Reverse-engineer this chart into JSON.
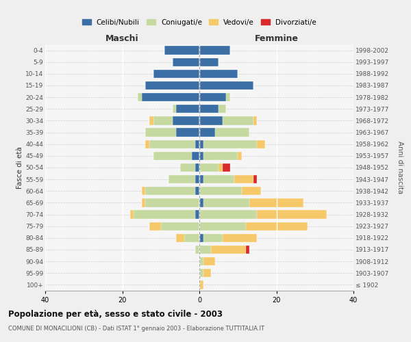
{
  "age_groups": [
    "100+",
    "95-99",
    "90-94",
    "85-89",
    "80-84",
    "75-79",
    "70-74",
    "65-69",
    "60-64",
    "55-59",
    "50-54",
    "45-49",
    "40-44",
    "35-39",
    "30-34",
    "25-29",
    "20-24",
    "15-19",
    "10-14",
    "5-9",
    "0-4"
  ],
  "birth_years": [
    "≤ 1902",
    "1903-1907",
    "1908-1912",
    "1913-1917",
    "1918-1922",
    "1923-1927",
    "1928-1932",
    "1933-1937",
    "1938-1942",
    "1943-1947",
    "1948-1952",
    "1953-1957",
    "1958-1962",
    "1963-1967",
    "1968-1972",
    "1973-1977",
    "1978-1982",
    "1983-1987",
    "1988-1992",
    "1993-1997",
    "1998-2002"
  ],
  "colors": {
    "celibi": "#3a6ea5",
    "coniugati": "#c5d9a0",
    "vedovi": "#f5c96a",
    "divorziati": "#d9292b"
  },
  "males": {
    "celibi": [
      0,
      0,
      0,
      0,
      0,
      0,
      1,
      0,
      1,
      1,
      1,
      2,
      1,
      6,
      7,
      6,
      15,
      14,
      12,
      7,
      9
    ],
    "coniugati": [
      0,
      0,
      0,
      1,
      4,
      10,
      16,
      14,
      13,
      7,
      4,
      10,
      12,
      8,
      5,
      1,
      1,
      0,
      0,
      0,
      0
    ],
    "vedovi": [
      0,
      0,
      0,
      0,
      2,
      3,
      1,
      1,
      1,
      0,
      0,
      0,
      1,
      0,
      1,
      0,
      0,
      0,
      0,
      0,
      0
    ],
    "divorziati": [
      0,
      0,
      0,
      0,
      0,
      0,
      0,
      0,
      0,
      0,
      0,
      0,
      0,
      0,
      0,
      0,
      0,
      0,
      0,
      0,
      0
    ]
  },
  "females": {
    "celibi": [
      0,
      0,
      0,
      0,
      1,
      0,
      0,
      1,
      0,
      1,
      0,
      1,
      1,
      4,
      6,
      5,
      7,
      14,
      10,
      5,
      8
    ],
    "coniugati": [
      0,
      1,
      1,
      3,
      5,
      12,
      15,
      12,
      11,
      8,
      5,
      9,
      14,
      9,
      8,
      2,
      1,
      0,
      0,
      0,
      0
    ],
    "vedovi": [
      1,
      2,
      3,
      9,
      9,
      16,
      18,
      14,
      5,
      5,
      1,
      1,
      2,
      0,
      1,
      0,
      0,
      0,
      0,
      0,
      0
    ],
    "divorziati": [
      0,
      0,
      0,
      1,
      0,
      0,
      0,
      0,
      0,
      1,
      2,
      0,
      0,
      0,
      0,
      0,
      0,
      0,
      0,
      0,
      0
    ]
  },
  "xlim": 40,
  "title": "Popolazione per età, sesso e stato civile - 2003",
  "subtitle": "COMUNE DI MONACILIONI (CB) - Dati ISTAT 1° gennaio 2003 - Elaborazione TUTTITALIA.IT",
  "ylabel_left": "Fasce di età",
  "ylabel_right": "Anni di nascita",
  "label_maschi": "Maschi",
  "label_femmine": "Femmine",
  "legend_labels": [
    "Celibi/Nubili",
    "Coniugati/e",
    "Vedovi/e",
    "Divorziati/e"
  ],
  "background_color": "#efefef",
  "plot_bg": "#f5f5f5"
}
